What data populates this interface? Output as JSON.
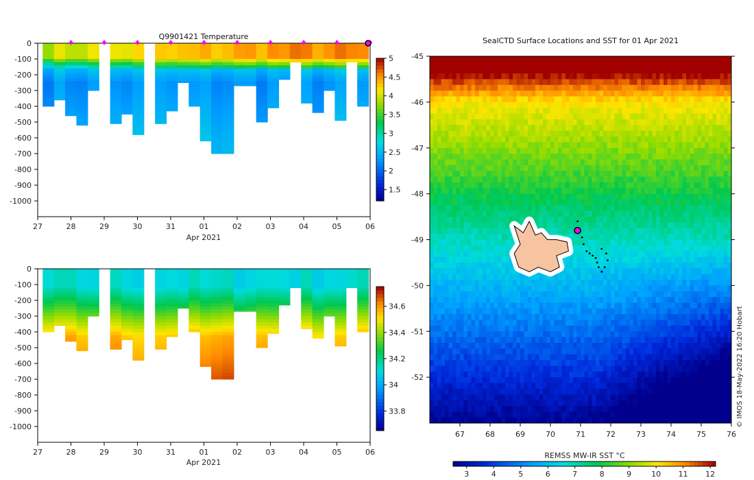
{
  "chart_data": [
    {
      "id": "temp",
      "type": "heatmap",
      "title": "Q9901421  Temperature",
      "xlabel": "Apr 2021",
      "xticks": [
        "27",
        "28",
        "29",
        "30",
        "31",
        "01",
        "02",
        "03",
        "04",
        "05",
        "06"
      ],
      "yticks": [
        "0",
        "-100",
        "-200",
        "-300",
        "-400",
        "-500",
        "-600",
        "-700",
        "-800",
        "-900",
        "-1000"
      ],
      "ylim": [
        -1100,
        0
      ],
      "colorbar": {
        "min": 1.2,
        "max": 5.0,
        "ticks": [
          "1.5",
          "2",
          "2.5",
          "3",
          "3.5",
          "4",
          "4.5",
          "5"
        ]
      },
      "profile_depths_m": [
        400,
        360,
        460,
        520,
        300,
        0,
        510,
        450,
        580,
        0,
        510,
        430,
        250,
        400,
        620,
        700,
        700,
        270,
        270,
        500,
        410,
        230,
        120,
        380,
        440,
        300,
        490,
        120,
        400
      ],
      "surface_markers_day": [
        28,
        29,
        30,
        31,
        32,
        33,
        34,
        35,
        36,
        37
      ]
    },
    {
      "id": "sal",
      "type": "heatmap",
      "title": "",
      "xlabel": "Apr 2021",
      "xticks": [
        "27",
        "28",
        "29",
        "30",
        "31",
        "01",
        "02",
        "03",
        "04",
        "05",
        "06"
      ],
      "yticks": [
        "0",
        "-100",
        "-200",
        "-300",
        "-400",
        "-500",
        "-600",
        "-700",
        "-800",
        "-900",
        "-1000"
      ],
      "ylim": [
        -1100,
        0
      ],
      "colorbar": {
        "min": 33.65,
        "max": 34.75,
        "ticks": [
          "33.8",
          "34",
          "34.2",
          "34.4",
          "34.6"
        ]
      }
    },
    {
      "id": "map",
      "type": "heatmap",
      "title": "SealCTD Surface Locations and SST for 01 Apr 2021",
      "xlabel": "",
      "xticks": [
        "67",
        "68",
        "69",
        "70",
        "71",
        "72",
        "73",
        "74",
        "75",
        "76"
      ],
      "yticks": [
        "-45",
        "-46",
        "-47",
        "-48",
        "-49",
        "-50",
        "-51",
        "-52"
      ],
      "xlim": [
        66,
        76
      ],
      "ylim": [
        -53,
        -45
      ],
      "colorbar": {
        "label": "REMSS MW-IR SST °C",
        "min": 2.5,
        "max": 12.2,
        "ticks": [
          "3",
          "4",
          "5",
          "6",
          "7",
          "8",
          "9",
          "10",
          "11",
          "12"
        ]
      },
      "credit": "© IMOS 18-May-2022 16:20 Hobart",
      "track_lonlat": [
        [
          70.9,
          -48.6
        ],
        [
          70.95,
          -48.8
        ],
        [
          71.05,
          -48.95
        ],
        [
          71.1,
          -49.1
        ],
        [
          71.2,
          -49.25
        ],
        [
          71.3,
          -49.3
        ],
        [
          71.4,
          -49.35
        ],
        [
          71.5,
          -49.4
        ],
        [
          71.55,
          -49.5
        ],
        [
          71.6,
          -49.6
        ],
        [
          71.7,
          -49.7
        ],
        [
          71.8,
          -49.6
        ],
        [
          71.9,
          -49.45
        ],
        [
          71.85,
          -49.3
        ],
        [
          71.7,
          -49.2
        ]
      ],
      "current_position": [
        70.9,
        -48.8
      ]
    }
  ]
}
